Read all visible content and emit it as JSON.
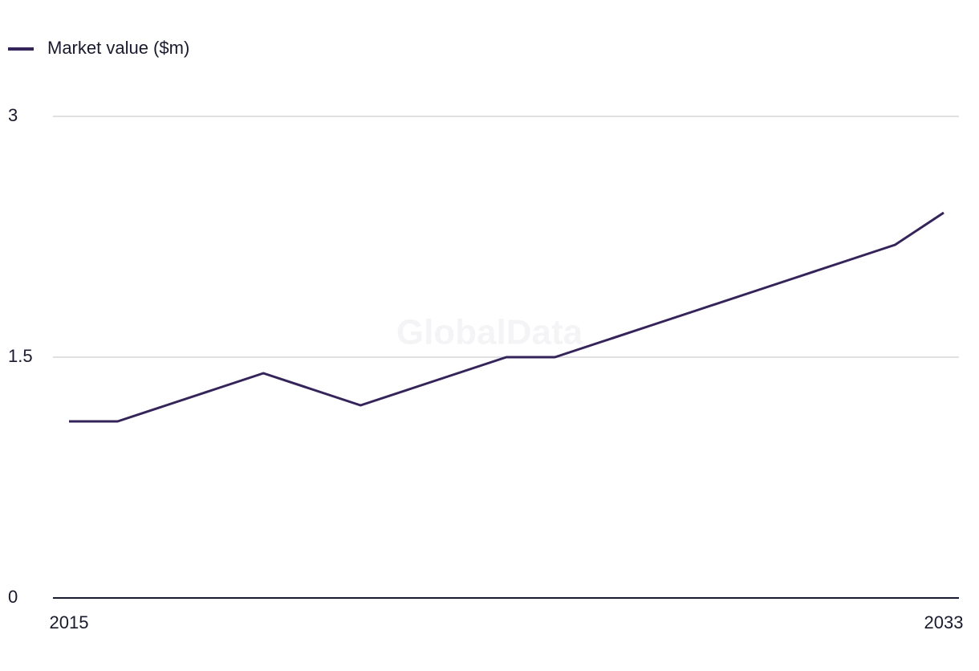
{
  "chart_data": {
    "type": "line",
    "watermark": "GlobalData",
    "x": [
      2015,
      2016,
      2017,
      2018,
      2019,
      2020,
      2021,
      2022,
      2023,
      2024,
      2025,
      2026,
      2027,
      2028,
      2029,
      2030,
      2031,
      2032,
      2033
    ],
    "series": [
      {
        "name": "Market value ($m)",
        "color": "#35245a",
        "values": [
          1.1,
          1.1,
          1.2,
          1.3,
          1.4,
          1.3,
          1.2,
          1.3,
          1.4,
          1.5,
          1.5,
          1.6,
          1.7,
          1.8,
          1.9,
          2.0,
          2.1,
          2.2,
          2.4
        ]
      }
    ],
    "xlim": [
      2015,
      2033
    ],
    "xticks": [
      2015,
      2033
    ],
    "ylim": [
      0,
      3
    ],
    "yticks": [
      0,
      1.5,
      3
    ],
    "grid": true,
    "legend": "top-left"
  }
}
